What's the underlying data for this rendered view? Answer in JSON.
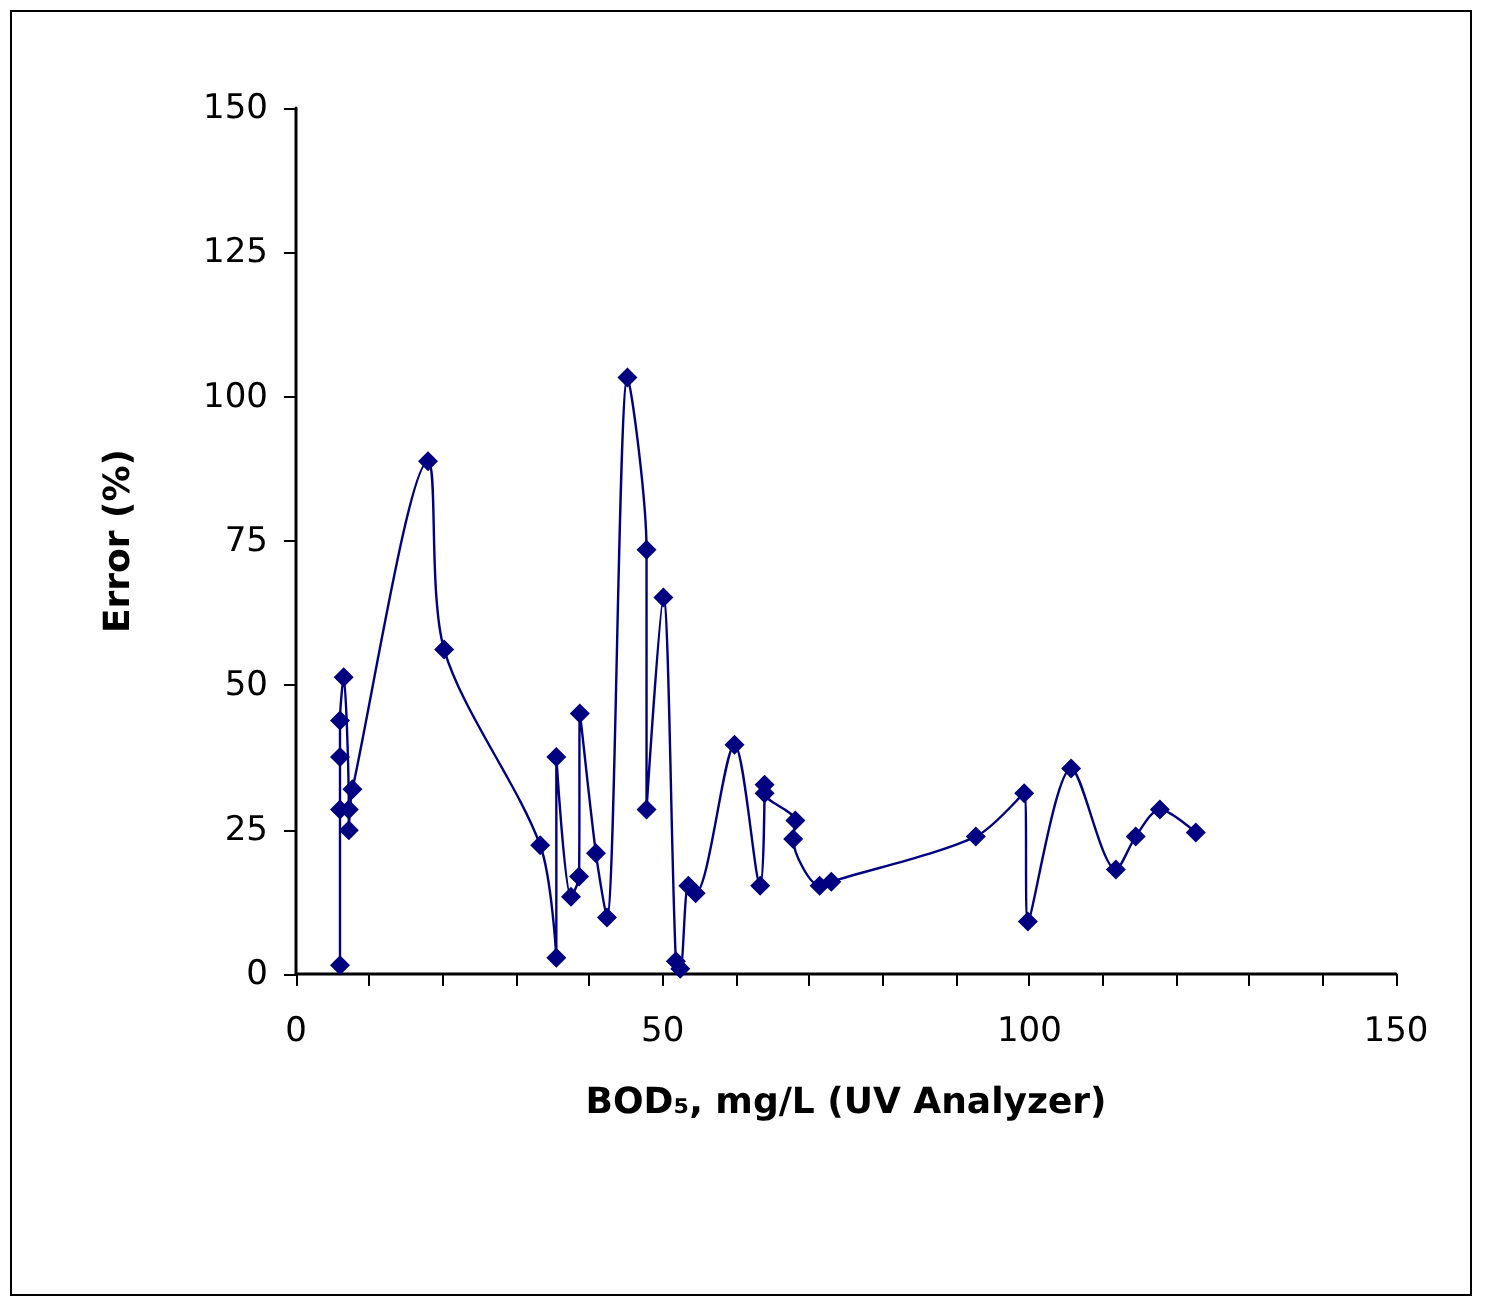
{
  "chart_data": {
    "type": "line",
    "xlabel": "BOD₅, mg/L (UV Analyzer)",
    "ylabel": "Error (%)",
    "marker": "diamond",
    "line_style": "solid",
    "xlim": [
      0,
      150
    ],
    "ylim": [
      0,
      150
    ],
    "xticks": [
      0,
      {
        "value": 10,
        "label": null
      },
      {
        "value": 20,
        "label": null
      },
      {
        "value": 30,
        "label": null
      },
      {
        "value": 40,
        "label": null
      },
      50,
      {
        "value": 60,
        "label": null
      },
      {
        "value": 70,
        "label": null
      },
      {
        "value": 80,
        "label": null
      },
      {
        "value": 90,
        "label": null
      },
      100,
      {
        "value": 110,
        "label": null
      },
      {
        "value": 120,
        "label": null
      },
      {
        "value": 130,
        "label": null
      },
      {
        "value": 140,
        "label": null
      },
      150
    ],
    "yticks": [
      0,
      25,
      50,
      75,
      100,
      125,
      150
    ],
    "series": [
      {
        "color": "#000080",
        "x": [
          6.0,
          6.0,
          6.0,
          6.0,
          6.5,
          7.2,
          7.2,
          7.7,
          18.0,
          20.2,
          33.3,
          35.5,
          35.5,
          37.5,
          38.6,
          38.7,
          40.9,
          42.4,
          45.2,
          47.8,
          47.8,
          50.1,
          51.8,
          52.4,
          53.5,
          54.5,
          59.8,
          63.3,
          63.9,
          63.9,
          68.1,
          67.8,
          71.4,
          73.0,
          92.7,
          99.3,
          99.8,
          105.7,
          111.8,
          114.5,
          117.8,
          122.7
        ],
        "values": [
          1.5,
          28.5,
          37.6,
          43.9,
          51.4,
          28.5,
          24.9,
          32.0,
          88.8,
          56.2,
          22.3,
          2.8,
          37.6,
          13.4,
          16.9,
          45.1,
          20.9,
          9.8,
          103.3,
          73.5,
          28.5,
          65.2,
          2.2,
          0.9,
          15.3,
          14.0,
          39.7,
          15.3,
          32.8,
          31.3,
          26.6,
          23.4,
          15.3,
          16.0,
          23.8,
          31.3,
          9.1,
          35.6,
          18.1,
          23.8,
          28.5,
          24.5
        ]
      }
    ]
  }
}
